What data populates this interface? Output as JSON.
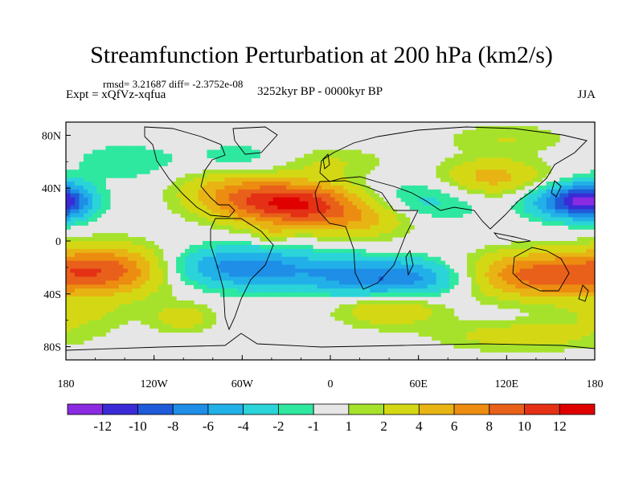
{
  "chart_data": {
    "type": "heatmap",
    "title": "Streamfunction Perturbation at 200 hPa (km2/s)",
    "stats_line": "rmsd= 3.21687 diff= -2.3752e-08",
    "left_label": "Expt = xQfVz-xqfua",
    "center_label": "3252kyr BP - 0000kyr BP",
    "right_label": "JJA",
    "x_ticks": [
      "180",
      "120W",
      "60W",
      "0",
      "60E",
      "120E",
      "180"
    ],
    "y_ticks": [
      "80N",
      "40N",
      "0",
      "40S",
      "80S"
    ],
    "x_range": [
      -180,
      180
    ],
    "y_range": [
      -90,
      90
    ],
    "colorbar_labels": [
      "-12",
      "-10",
      "-8",
      "-6",
      "-4",
      "-2",
      "-1",
      "1",
      "2",
      "4",
      "6",
      "8",
      "10",
      "12"
    ],
    "colorbar_colors": [
      "#8a2be2",
      "#3a2bd6",
      "#1f5bd8",
      "#1e8ee6",
      "#22b0e8",
      "#2ad4d8",
      "#2ee8a0",
      "#e6e6e6",
      "#a6e22c",
      "#d4d814",
      "#e8b414",
      "#ec8c10",
      "#e8601a",
      "#e43014",
      "#e00000"
    ],
    "field_centers": [
      {
        "lon": -25,
        "lat": 28,
        "value": 12,
        "sigma_lon": 32,
        "sigma_lat": 12
      },
      {
        "lon": -70,
        "lat": 38,
        "value": 4,
        "sigma_lon": 25,
        "sigma_lat": 12
      },
      {
        "lon": 25,
        "lat": 16,
        "value": 4,
        "sigma_lon": 25,
        "sigma_lat": 10
      },
      {
        "lon": 110,
        "lat": 48,
        "value": 5,
        "sigma_lon": 25,
        "sigma_lat": 10
      },
      {
        "lon": -180,
        "lat": 30,
        "value": -5,
        "sigma_lon": 12,
        "sigma_lat": 10
      },
      {
        "lon": 165,
        "lat": 30,
        "value": -10,
        "sigma_lon": 20,
        "sigma_lat": 9
      },
      {
        "lon": 60,
        "lat": 30,
        "value": -3,
        "sigma_lon": 30,
        "sigma_lat": 12
      },
      {
        "lon": -150,
        "lat": -22,
        "value": 9,
        "sigma_lon": 30,
        "sigma_lat": 13
      },
      {
        "lon": 140,
        "lat": -26,
        "value": 9,
        "sigma_lon": 35,
        "sigma_lat": 12
      },
      {
        "lon": -60,
        "lat": -20,
        "value": -7,
        "sigma_lon": 40,
        "sigma_lat": 11
      },
      {
        "lon": 40,
        "lat": -28,
        "value": -8,
        "sigma_lon": 38,
        "sigma_lat": 10
      },
      {
        "lon": 40,
        "lat": -52,
        "value": 4,
        "sigma_lon": 25,
        "sigma_lat": 9
      },
      {
        "lon": -170,
        "lat": -55,
        "value": 2,
        "sigma_lon": 25,
        "sigma_lat": 10
      },
      {
        "lon": -100,
        "lat": -58,
        "value": 3,
        "sigma_lon": 15,
        "sigma_lat": 8
      },
      {
        "lon": 130,
        "lat": -72,
        "value": 3,
        "sigma_lon": 40,
        "sigma_lat": 8
      },
      {
        "lon": 0,
        "lat": 60,
        "value": 2,
        "sigma_lon": 28,
        "sigma_lat": 8
      },
      {
        "lon": -140,
        "lat": 60,
        "value": -2,
        "sigma_lon": 25,
        "sigma_lat": 10
      },
      {
        "lon": -60,
        "lat": 62,
        "value": -2,
        "sigma_lon": 25,
        "sigma_lat": 9
      },
      {
        "lon": 120,
        "lat": 78,
        "value": 2,
        "sigma_lon": 30,
        "sigma_lat": 8
      },
      {
        "lon": -40,
        "lat": 5,
        "value": 2,
        "sigma_lon": 8,
        "sigma_lat": 5
      }
    ]
  }
}
